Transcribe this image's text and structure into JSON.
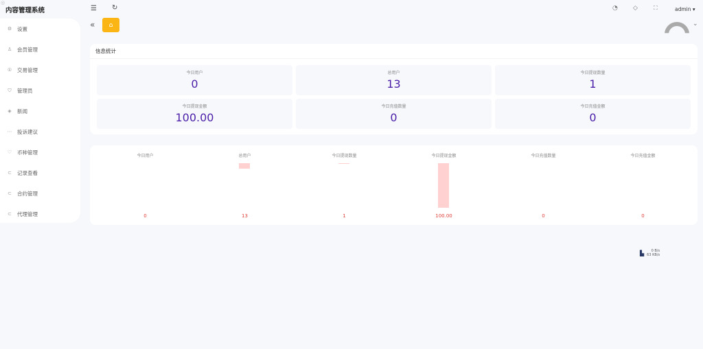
{
  "app_title": "内容管理系统",
  "sidebar": {
    "items": [
      {
        "label": "设置",
        "icon": "gear-icon"
      },
      {
        "label": "会员管理",
        "icon": "user-icon"
      },
      {
        "label": "交易管理",
        "icon": "coin-icon"
      },
      {
        "label": "管理员",
        "icon": "shield-icon"
      },
      {
        "label": "新闻",
        "icon": "tag-icon"
      },
      {
        "label": "投诉建议",
        "icon": "chat-icon"
      },
      {
        "label": "币种管理",
        "icon": "heart-icon"
      },
      {
        "label": "记录查看",
        "icon": "record-icon"
      },
      {
        "label": "合约管理",
        "icon": "contract-icon"
      },
      {
        "label": "代理管理",
        "icon": "agent-icon"
      }
    ]
  },
  "header": {
    "user": "admin"
  },
  "stats": {
    "title": "信息统计",
    "cards": [
      {
        "label": "今日用户",
        "value": "0"
      },
      {
        "label": "总用户",
        "value": "13"
      },
      {
        "label": "今日提现数量",
        "value": "1"
      },
      {
        "label": "今日提现金额",
        "value": "100.00"
      },
      {
        "label": "今日充值数量",
        "value": "0"
      },
      {
        "label": "今日充值金额",
        "value": "0"
      }
    ]
  },
  "chart_data": {
    "type": "bar",
    "categories": [
      "今日用户",
      "总用户",
      "今日提现数量",
      "今日提现金额",
      "今日充值数量",
      "今日充值金额"
    ],
    "values": [
      0,
      13,
      1,
      100,
      0,
      0
    ],
    "labels": [
      "0",
      "13",
      "1",
      "100.00",
      "0",
      "0"
    ],
    "color": "#ffd1d1",
    "label_color": "#e0403a"
  },
  "network": {
    "down": "0 B/s",
    "up": "63 KB/s"
  },
  "colors": {
    "accent": "#fbb514",
    "value": "#4b1fa8"
  }
}
